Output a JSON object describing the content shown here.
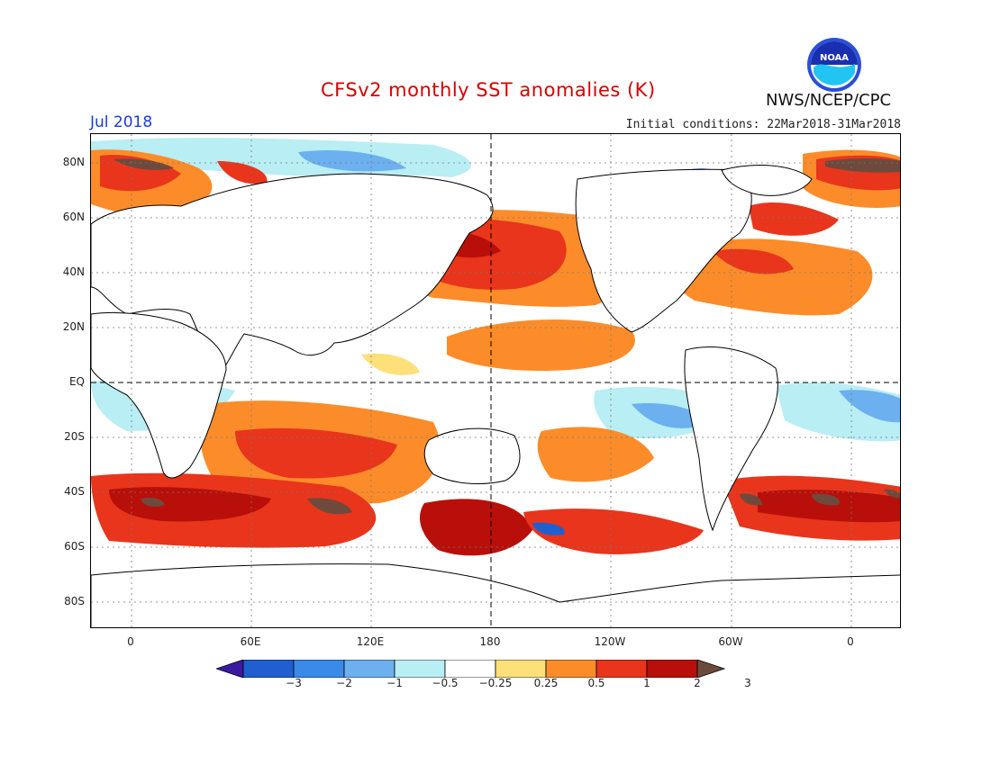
{
  "header": {
    "title": "CFSv2 monthly SST anomalies (K)",
    "month": "Jul 2018",
    "initial_conditions": "Initial conditions: 22Mar2018-31Mar2018",
    "agency": "NWS/NCEP/CPC",
    "logo_text": "NOAA"
  },
  "map": {
    "lat_labels": [
      "80N",
      "60N",
      "40N",
      "20N",
      "EQ",
      "20S",
      "40S",
      "60S",
      "80S"
    ],
    "lon_labels": [
      "0",
      "60E",
      "120E",
      "180",
      "120W",
      "60W",
      "0"
    ]
  },
  "colorbar": {
    "labels": [
      "−3",
      "−2",
      "−1",
      "−0.5",
      "−0.25",
      "0.25",
      "0.5",
      "1",
      "2",
      "3"
    ],
    "colors": [
      "#3a1a9e",
      "#1f5fd0",
      "#3a8ae8",
      "#6cb0f0",
      "#b8eef4",
      "#ffffff",
      "#fde07a",
      "#fc8c2a",
      "#e8351c",
      "#b80f0a",
      "#6e4a3c"
    ]
  }
}
